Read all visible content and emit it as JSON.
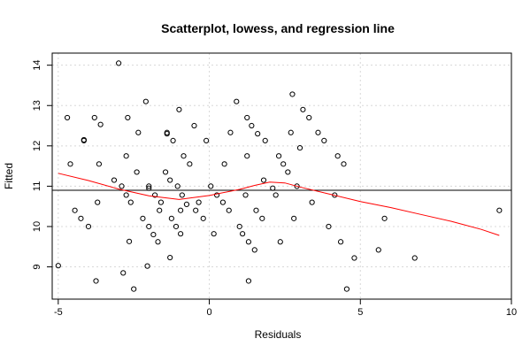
{
  "chart_data": {
    "type": "scatter",
    "title": "Scatterplot, lowess, and regression line",
    "xlabel": "Residuals",
    "ylabel": "Fitted",
    "xlim": [
      -5.2,
      10.0
    ],
    "ylim": [
      8.2,
      14.3
    ],
    "xticks": [
      -5,
      0,
      5,
      10
    ],
    "yticks": [
      9,
      10,
      11,
      12,
      13,
      14
    ],
    "grid": true,
    "colors": {
      "points": "#000000",
      "lowess": "#ff0000",
      "regression": "#000000",
      "grid": "#d8d8d8"
    },
    "points": [
      [
        -5.0,
        9.03
      ],
      [
        -4.7,
        12.7
      ],
      [
        -4.6,
        11.55
      ],
      [
        -4.45,
        10.4
      ],
      [
        -4.25,
        10.2
      ],
      [
        -4.15,
        12.13
      ],
      [
        -4.15,
        12.15
      ],
      [
        -4.0,
        10.0
      ],
      [
        -3.8,
        12.7
      ],
      [
        -3.75,
        8.65
      ],
      [
        -3.7,
        10.6
      ],
      [
        -3.65,
        11.55
      ],
      [
        -3.6,
        12.53
      ],
      [
        -3.15,
        11.15
      ],
      [
        -3.0,
        14.05
      ],
      [
        -2.9,
        11.0
      ],
      [
        -2.85,
        8.85
      ],
      [
        -2.75,
        10.78
      ],
      [
        -2.75,
        11.75
      ],
      [
        -2.7,
        12.7
      ],
      [
        -2.65,
        9.63
      ],
      [
        -2.6,
        10.6
      ],
      [
        -2.5,
        8.45
      ],
      [
        -2.4,
        11.35
      ],
      [
        -2.35,
        12.33
      ],
      [
        -2.2,
        10.2
      ],
      [
        -2.1,
        13.1
      ],
      [
        -2.05,
        9.02
      ],
      [
        -2.0,
        10.95
      ],
      [
        -2.0,
        11.0
      ],
      [
        -2.0,
        10.0
      ],
      [
        -1.85,
        9.8
      ],
      [
        -1.8,
        10.78
      ],
      [
        -1.7,
        9.62
      ],
      [
        -1.65,
        10.4
      ],
      [
        -1.6,
        10.6
      ],
      [
        -1.45,
        11.35
      ],
      [
        -1.4,
        12.3
      ],
      [
        -1.4,
        12.33
      ],
      [
        -1.3,
        9.23
      ],
      [
        -1.3,
        11.15
      ],
      [
        -1.25,
        10.2
      ],
      [
        -1.2,
        12.13
      ],
      [
        -1.1,
        10.0
      ],
      [
        -1.05,
        11.0
      ],
      [
        -1.0,
        12.9
      ],
      [
        -0.95,
        9.82
      ],
      [
        -0.95,
        10.4
      ],
      [
        -0.9,
        10.78
      ],
      [
        -0.85,
        11.75
      ],
      [
        -0.75,
        10.55
      ],
      [
        -0.65,
        11.55
      ],
      [
        -0.5,
        12.5
      ],
      [
        -0.45,
        10.4
      ],
      [
        -0.35,
        10.6
      ],
      [
        -0.2,
        10.2
      ],
      [
        -0.1,
        12.13
      ],
      [
        0.05,
        11.0
      ],
      [
        0.15,
        9.82
      ],
      [
        0.25,
        10.78
      ],
      [
        0.45,
        10.6
      ],
      [
        0.5,
        11.55
      ],
      [
        0.65,
        10.4
      ],
      [
        0.7,
        12.33
      ],
      [
        0.9,
        13.1
      ],
      [
        1.0,
        10.0
      ],
      [
        1.1,
        9.82
      ],
      [
        1.2,
        10.78
      ],
      [
        1.25,
        12.7
      ],
      [
        1.25,
        11.75
      ],
      [
        1.3,
        8.65
      ],
      [
        1.3,
        9.62
      ],
      [
        1.4,
        12.5
      ],
      [
        1.5,
        9.42
      ],
      [
        1.55,
        10.4
      ],
      [
        1.6,
        12.3
      ],
      [
        1.75,
        10.2
      ],
      [
        1.8,
        11.15
      ],
      [
        1.85,
        12.13
      ],
      [
        2.1,
        10.95
      ],
      [
        2.2,
        10.78
      ],
      [
        2.3,
        11.75
      ],
      [
        2.35,
        9.62
      ],
      [
        2.45,
        11.55
      ],
      [
        2.6,
        11.35
      ],
      [
        2.7,
        12.33
      ],
      [
        2.75,
        13.28
      ],
      [
        2.8,
        10.2
      ],
      [
        2.9,
        11.0
      ],
      [
        3.0,
        11.95
      ],
      [
        3.1,
        12.9
      ],
      [
        3.3,
        12.7
      ],
      [
        3.4,
        10.6
      ],
      [
        3.6,
        12.33
      ],
      [
        3.8,
        12.13
      ],
      [
        3.95,
        10.0
      ],
      [
        4.15,
        10.78
      ],
      [
        4.25,
        11.75
      ],
      [
        4.35,
        9.62
      ],
      [
        4.45,
        11.55
      ],
      [
        4.55,
        8.45
      ],
      [
        4.8,
        9.22
      ],
      [
        5.6,
        9.42
      ],
      [
        5.8,
        10.2
      ],
      [
        6.8,
        9.22
      ],
      [
        9.6,
        10.4
      ]
    ],
    "regression": {
      "intercept": 10.9,
      "slope": 0.0
    },
    "lowess": [
      [
        -5.0,
        11.32
      ],
      [
        -4.0,
        11.14
      ],
      [
        -3.0,
        10.93
      ],
      [
        -2.0,
        10.76
      ],
      [
        -1.0,
        10.67
      ],
      [
        0.0,
        10.77
      ],
      [
        1.0,
        10.92
      ],
      [
        1.5,
        11.02
      ],
      [
        2.0,
        11.1
      ],
      [
        2.5,
        11.08
      ],
      [
        3.0,
        10.98
      ],
      [
        4.0,
        10.8
      ],
      [
        5.0,
        10.62
      ],
      [
        6.0,
        10.47
      ],
      [
        7.0,
        10.3
      ],
      [
        8.0,
        10.13
      ],
      [
        9.0,
        9.93
      ],
      [
        9.6,
        9.78
      ]
    ]
  }
}
